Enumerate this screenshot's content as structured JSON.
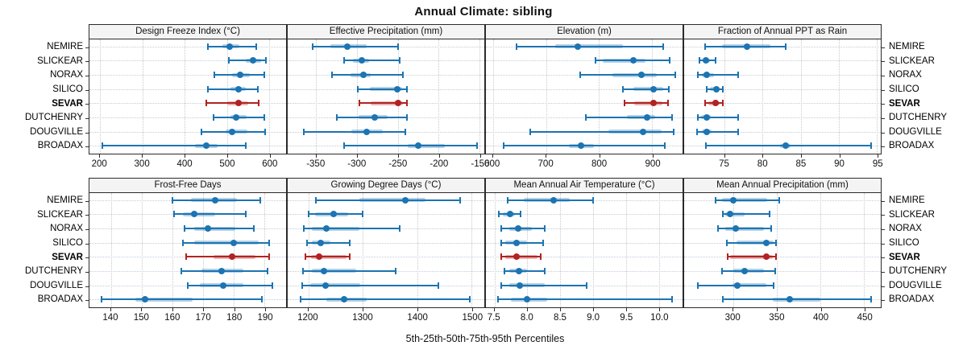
{
  "title": "Annual Climate: sibling",
  "footer": "5th-25th-50th-75th-95th Percentiles",
  "sites": [
    "NEMIRE",
    "SLICKEAR",
    "NORAX",
    "SILICO",
    "SEVAR",
    "DUTCHENRY",
    "DOUGVILLE",
    "BROADAX"
  ],
  "highlight_site": "SEVAR",
  "colors": {
    "series": "#1c74b2",
    "series_band": "rgba(28,116,178,0.33)",
    "highlight": "#b22222",
    "highlight_band": "rgba(178,34,34,0.33)",
    "strip_bg": "#f4f4f4",
    "border": "#2b2b2b",
    "grid": "#c9c9c9"
  },
  "chart_data": [
    {
      "type": "dot-whisker",
      "percentiles": [
        5,
        25,
        50,
        75,
        95
      ],
      "title": "Design Freeze Index (°C)",
      "xlim": [
        175,
        640
      ],
      "ticks": [
        200,
        300,
        400,
        500,
        600
      ],
      "tick_labels": [
        "200",
        "300",
        "400",
        "500",
        "600"
      ],
      "values": {
        "NEMIRE": [
          455,
          490,
          507,
          530,
          570
        ],
        "SLICKEAR": [
          505,
          545,
          562,
          580,
          593
        ],
        "NORAX": [
          470,
          512,
          532,
          555,
          588
        ],
        "SILICO": [
          455,
          508,
          528,
          545,
          573
        ],
        "SEVAR": [
          452,
          500,
          528,
          550,
          575
        ],
        "DUTCHENRY": [
          468,
          508,
          522,
          546,
          588
        ],
        "DOUGVILLE": [
          440,
          498,
          512,
          548,
          590
        ],
        "BROADAX": [
          205,
          425,
          452,
          478,
          545
        ]
      }
    },
    {
      "type": "dot-whisker",
      "percentiles": [
        5,
        25,
        50,
        75,
        95
      ],
      "title": "Effective Precipitation (mm)",
      "xlim": [
        -385,
        -144
      ],
      "ticks": [
        -350,
        -300,
        -250,
        -200,
        -150
      ],
      "tick_labels": [
        "-350",
        "-300",
        "-250",
        "-200",
        "-150"
      ],
      "values": {
        "NEMIRE": [
          -354,
          -333,
          -312,
          -288,
          -250
        ],
        "SLICKEAR": [
          -316,
          -305,
          -294,
          -285,
          -248
        ],
        "NORAX": [
          -331,
          -308,
          -292,
          -283,
          -244
        ],
        "SILICO": [
          -299,
          -284,
          -251,
          -245,
          -239
        ],
        "SEVAR": [
          -297,
          -283,
          -250,
          -244,
          -239
        ],
        "DUTCHENRY": [
          -325,
          -298,
          -278,
          -263,
          -239
        ],
        "DOUGVILLE": [
          -365,
          -307,
          -288,
          -268,
          -241
        ],
        "BROADAX": [
          -316,
          -238,
          -225,
          -192,
          -153
        ]
      }
    },
    {
      "type": "dot-whisker",
      "percentiles": [
        5,
        25,
        50,
        75,
        95
      ],
      "title": "Elevation (m)",
      "xlim": [
        587,
        957
      ],
      "ticks": [
        600,
        700,
        800,
        900
      ],
      "tick_labels": [
        "600",
        "700",
        "800",
        "900"
      ],
      "values": {
        "NEMIRE": [
          645,
          718,
          760,
          845,
          920
        ],
        "SLICKEAR": [
          793,
          807,
          865,
          888,
          933
        ],
        "NORAX": [
          765,
          825,
          880,
          908,
          943
        ],
        "SILICO": [
          845,
          865,
          902,
          920,
          931
        ],
        "SEVAR": [
          848,
          866,
          903,
          919,
          929
        ],
        "DUTCHENRY": [
          775,
          852,
          890,
          905,
          937
        ],
        "DOUGVILLE": [
          670,
          818,
          883,
          918,
          941
        ],
        "BROADAX": [
          620,
          743,
          766,
          790,
          923
        ]
      }
    },
    {
      "type": "dot-whisker",
      "percentiles": [
        5,
        25,
        50,
        75,
        95
      ],
      "title": "Fraction of Annual PPT as Rain",
      "xlim": [
        69.7,
        95.5
      ],
      "ticks": [
        75,
        80,
        85,
        90,
        95
      ],
      "tick_labels": [
        "75",
        "80",
        "85",
        "90",
        "95"
      ],
      "values": {
        "NEMIRE": [
          72.5,
          74.7,
          78.0,
          81.0,
          83.0
        ],
        "SLICKEAR": [
          71.7,
          72.1,
          72.6,
          73.1,
          73.8
        ],
        "NORAX": [
          71.5,
          72.0,
          72.7,
          73.6,
          76.8
        ],
        "SILICO": [
          72.7,
          73.1,
          73.9,
          74.4,
          74.8
        ],
        "SEVAR": [
          72.4,
          72.9,
          73.8,
          74.4,
          74.8
        ],
        "DUTCHENRY": [
          71.5,
          71.9,
          72.7,
          73.2,
          76.8
        ],
        "DOUGVILLE": [
          71.4,
          72.0,
          72.7,
          73.3,
          76.8
        ],
        "BROADAX": [
          72.6,
          82.3,
          83.0,
          83.7,
          94.2
        ]
      }
    },
    {
      "type": "dot-whisker",
      "percentiles": [
        5,
        25,
        50,
        75,
        95
      ],
      "title": "Frost-Free Days",
      "xlim": [
        133,
        197
      ],
      "ticks": [
        140,
        150,
        160,
        170,
        180,
        190
      ],
      "tick_labels": [
        "140",
        "150",
        "160",
        "170",
        "180",
        "190"
      ],
      "values": {
        "NEMIRE": [
          160,
          166,
          174,
          181,
          188.5
        ],
        "SLICKEAR": [
          160.5,
          163.5,
          167,
          174,
          184
        ],
        "NORAX": [
          164,
          167,
          171.5,
          180.5,
          186.5
        ],
        "SILICO": [
          163.5,
          167,
          180,
          188,
          191.5
        ],
        "SEVAR": [
          164.5,
          173.5,
          179.5,
          187,
          191.5
        ],
        "DUTCHENRY": [
          163,
          169.5,
          176,
          183,
          191
        ],
        "DOUGVILLE": [
          165,
          169,
          176.5,
          183,
          192.5
        ],
        "BROADAX": [
          137,
          148,
          151,
          166.5,
          189
        ]
      }
    },
    {
      "type": "dot-whisker",
      "percentiles": [
        5,
        25,
        50,
        75,
        95
      ],
      "title": "Growing Degree Days (°C)",
      "xlim": [
        1162,
        1523
      ],
      "ticks": [
        1200,
        1300,
        1400,
        1500
      ],
      "tick_labels": [
        "1200",
        "1300",
        "1400",
        "1500"
      ],
      "values": {
        "NEMIRE": [
          1214,
          1293,
          1378,
          1415,
          1478
        ],
        "SLICKEAR": [
          1200,
          1212,
          1246,
          1273,
          1300
        ],
        "NORAX": [
          1192,
          1206,
          1233,
          1294,
          1367
        ],
        "SILICO": [
          1198,
          1206,
          1222,
          1240,
          1276
        ],
        "SEVAR": [
          1195,
          1205,
          1219,
          1270,
          1276
        ],
        "DUTCHENRY": [
          1190,
          1206,
          1228,
          1288,
          1360
        ],
        "DOUGVILLE": [
          1188,
          1204,
          1232,
          1295,
          1438
        ],
        "BROADAX": [
          1185,
          1233,
          1266,
          1307,
          1497
        ]
      }
    },
    {
      "type": "dot-whisker",
      "percentiles": [
        5,
        25,
        50,
        75,
        95
      ],
      "title": "Mean Annual Air Temperature (°C)",
      "xlim": [
        7.37,
        10.36
      ],
      "ticks": [
        7.5,
        8.0,
        8.5,
        9.0,
        9.5,
        10.0
      ],
      "tick_labels": [
        "7.5",
        "8.0",
        "8.5",
        "9.0",
        "9.5",
        "10.0"
      ],
      "values": {
        "NEMIRE": [
          7.7,
          7.95,
          8.4,
          8.65,
          9.0
        ],
        "SLICKEAR": [
          7.57,
          7.63,
          7.74,
          7.81,
          7.9
        ],
        "NORAX": [
          7.6,
          7.72,
          7.86,
          8.07,
          8.26
        ],
        "SILICO": [
          7.6,
          7.67,
          7.84,
          8.0,
          8.24
        ],
        "SEVAR": [
          7.6,
          7.66,
          7.83,
          8.16,
          8.2
        ],
        "DUTCHENRY": [
          7.65,
          7.73,
          7.87,
          8.0,
          8.27
        ],
        "DOUGVILLE": [
          7.6,
          7.73,
          7.89,
          8.26,
          8.9
        ],
        "BROADAX": [
          7.55,
          7.75,
          8.0,
          8.3,
          10.2
        ]
      }
    },
    {
      "type": "dot-whisker",
      "percentiles": [
        5,
        25,
        50,
        75,
        95
      ],
      "title": "Mean Annual Precipitation (mm)",
      "xlim": [
        244,
        469
      ],
      "ticks": [
        300,
        350,
        400,
        450
      ],
      "tick_labels": [
        "300",
        "350",
        "400",
        "450"
      ],
      "values": {
        "NEMIRE": [
          280,
          287,
          300,
          339,
          353
        ],
        "SLICKEAR": [
          288,
          291,
          297,
          313,
          342
        ],
        "NORAX": [
          283,
          291,
          303,
          335,
          344
        ],
        "SILICO": [
          293,
          304,
          338,
          346,
          349
        ],
        "SEVAR": [
          294,
          297,
          338,
          345,
          349
        ],
        "DUTCHENRY": [
          287,
          300,
          313,
          335,
          348
        ],
        "DOUGVILLE": [
          260,
          299,
          305,
          338,
          346
        ],
        "BROADAX": [
          288,
          345,
          365,
          400,
          458
        ]
      }
    }
  ]
}
